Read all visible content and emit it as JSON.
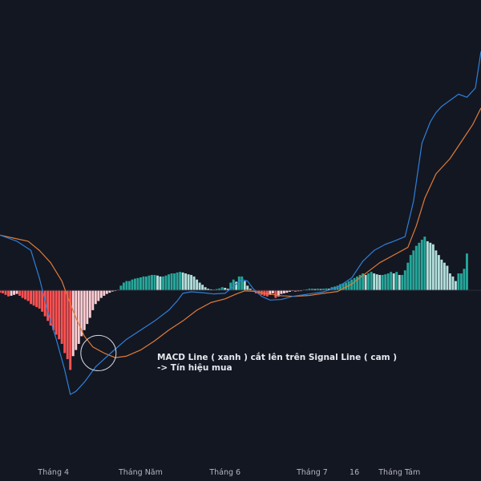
{
  "colors": {
    "background": "#131722",
    "macd_line": "#2f7fd6",
    "signal_line": "#e07b39",
    "hist_pos_strong": "#26a69a",
    "hist_pos_weak": "#b2dfdb",
    "hist_neg_strong": "#ff5252",
    "hist_neg_weak": "#ffcdd2",
    "axis_text": "#b2b5be",
    "annotation_text": "#e6e8ee",
    "circle": "#d1d4dc"
  },
  "annotation": {
    "line1": "MACD Line ( xanh ) cắt lên trên Signal Line ( cam )",
    "line2": "-> Tín hiệu mua"
  },
  "chart_data": {
    "type": "line",
    "x_axis_labels": [
      {
        "label": "Tháng 4",
        "t": 19
      },
      {
        "label": "Tháng Năm",
        "t": 50
      },
      {
        "label": "Tháng 6",
        "t": 80
      },
      {
        "label": "Tháng 7",
        "t": 111
      },
      {
        "label": "16",
        "t": 126
      },
      {
        "label": "Tháng Tám",
        "t": 142
      }
    ],
    "t_range": [
      0,
      171
    ],
    "y_range": [
      -3.4,
      7.8
    ],
    "zero": 0,
    "series": [
      {
        "key": "macd",
        "points": [
          [
            0,
            1.8
          ],
          [
            6,
            1.6
          ],
          [
            11,
            1.3
          ],
          [
            14,
            0.4
          ],
          [
            17,
            -0.7
          ],
          [
            20,
            -1.6
          ],
          [
            23,
            -2.6
          ],
          [
            25,
            -3.4
          ],
          [
            27,
            -3.3
          ],
          [
            30,
            -3.0
          ],
          [
            34,
            -2.5
          ],
          [
            40,
            -2.0
          ],
          [
            45,
            -1.6
          ],
          [
            50,
            -1.3
          ],
          [
            55,
            -1.0
          ],
          [
            60,
            -0.65
          ],
          [
            63,
            -0.35
          ],
          [
            65,
            -0.1
          ],
          [
            68,
            -0.05
          ],
          [
            72,
            -0.08
          ],
          [
            76,
            -0.12
          ],
          [
            80,
            -0.1
          ],
          [
            84,
            0.2
          ],
          [
            86,
            0.35
          ],
          [
            88,
            0.3
          ],
          [
            90,
            0.05
          ],
          [
            93,
            -0.2
          ],
          [
            96,
            -0.32
          ],
          [
            100,
            -0.3
          ],
          [
            104,
            -0.2
          ],
          [
            110,
            -0.12
          ],
          [
            115,
            -0.05
          ],
          [
            120,
            0.1
          ],
          [
            125,
            0.4
          ],
          [
            129,
            0.95
          ],
          [
            133,
            1.3
          ],
          [
            137,
            1.5
          ],
          [
            140,
            1.6
          ],
          [
            144,
            1.75
          ],
          [
            147,
            2.9
          ],
          [
            150,
            4.8
          ],
          [
            153,
            5.5
          ],
          [
            155,
            5.8
          ],
          [
            157,
            6.0
          ],
          [
            160,
            6.2
          ],
          [
            163,
            6.4
          ],
          [
            166,
            6.3
          ],
          [
            169,
            6.6
          ],
          [
            171,
            7.8
          ]
        ]
      },
      {
        "key": "signal",
        "points": [
          [
            0,
            1.8
          ],
          [
            5,
            1.7
          ],
          [
            10,
            1.6
          ],
          [
            14,
            1.3
          ],
          [
            18,
            0.9
          ],
          [
            22,
            0.3
          ],
          [
            24,
            -0.2
          ],
          [
            27,
            -0.9
          ],
          [
            30,
            -1.5
          ],
          [
            33,
            -1.85
          ],
          [
            37,
            -2.05
          ],
          [
            41,
            -2.2
          ],
          [
            45,
            -2.15
          ],
          [
            50,
            -1.95
          ],
          [
            55,
            -1.65
          ],
          [
            60,
            -1.3
          ],
          [
            65,
            -1.0
          ],
          [
            70,
            -0.65
          ],
          [
            75,
            -0.4
          ],
          [
            80,
            -0.28
          ],
          [
            84,
            -0.12
          ],
          [
            87,
            -0.02
          ],
          [
            90,
            -0.03
          ],
          [
            94,
            -0.1
          ],
          [
            100,
            -0.18
          ],
          [
            105,
            -0.2
          ],
          [
            110,
            -0.17
          ],
          [
            115,
            -0.1
          ],
          [
            120,
            -0.04
          ],
          [
            125,
            0.2
          ],
          [
            130,
            0.55
          ],
          [
            135,
            0.9
          ],
          [
            140,
            1.15
          ],
          [
            145,
            1.4
          ],
          [
            148,
            2.1
          ],
          [
            151,
            3.0
          ],
          [
            155,
            3.8
          ],
          [
            160,
            4.3
          ],
          [
            164,
            4.85
          ],
          [
            168,
            5.4
          ],
          [
            171,
            5.95
          ]
        ]
      }
    ],
    "histogram": [
      {
        "t": 0,
        "v": -0.08
      },
      {
        "t": 1,
        "v": -0.1
      },
      {
        "t": 2,
        "v": -0.15
      },
      {
        "t": 3,
        "v": -0.2
      },
      {
        "t": 4,
        "v": -0.18
      },
      {
        "t": 5,
        "v": -0.15
      },
      {
        "t": 6,
        "v": -0.12
      },
      {
        "t": 7,
        "v": -0.18
      },
      {
        "t": 8,
        "v": -0.25
      },
      {
        "t": 9,
        "v": -0.3
      },
      {
        "t": 10,
        "v": -0.35
      },
      {
        "t": 11,
        "v": -0.45
      },
      {
        "t": 12,
        "v": -0.5
      },
      {
        "t": 13,
        "v": -0.55
      },
      {
        "t": 14,
        "v": -0.6
      },
      {
        "t": 15,
        "v": -0.7
      },
      {
        "t": 16,
        "v": -0.85
      },
      {
        "t": 17,
        "v": -1.0
      },
      {
        "t": 18,
        "v": -1.15
      },
      {
        "t": 19,
        "v": -1.3
      },
      {
        "t": 20,
        "v": -1.45
      },
      {
        "t": 21,
        "v": -1.6
      },
      {
        "t": 22,
        "v": -1.75
      },
      {
        "t": 23,
        "v": -2.05
      },
      {
        "t": 24,
        "v": -2.25
      },
      {
        "t": 25,
        "v": -2.6
      },
      {
        "t": 26,
        "v": -2.15
      },
      {
        "t": 27,
        "v": -1.95
      },
      {
        "t": 28,
        "v": -1.75
      },
      {
        "t": 29,
        "v": -1.5
      },
      {
        "t": 30,
        "v": -1.3
      },
      {
        "t": 31,
        "v": -1.1
      },
      {
        "t": 32,
        "v": -0.9
      },
      {
        "t": 33,
        "v": -0.65
      },
      {
        "t": 34,
        "v": -0.45
      },
      {
        "t": 35,
        "v": -0.35
      },
      {
        "t": 36,
        "v": -0.25
      },
      {
        "t": 37,
        "v": -0.18
      },
      {
        "t": 38,
        "v": -0.12
      },
      {
        "t": 39,
        "v": -0.08
      },
      {
        "t": 40,
        "v": -0.04
      },
      {
        "t": 41,
        "v": -0.02
      },
      {
        "t": 42,
        "v": 0.02
      },
      {
        "t": 43,
        "v": 0.15
      },
      {
        "t": 44,
        "v": 0.25
      },
      {
        "t": 45,
        "v": 0.3
      },
      {
        "t": 46,
        "v": 0.3
      },
      {
        "t": 47,
        "v": 0.35
      },
      {
        "t": 48,
        "v": 0.38
      },
      {
        "t": 49,
        "v": 0.4
      },
      {
        "t": 50,
        "v": 0.42
      },
      {
        "t": 51,
        "v": 0.45
      },
      {
        "t": 52,
        "v": 0.45
      },
      {
        "t": 53,
        "v": 0.48
      },
      {
        "t": 54,
        "v": 0.5
      },
      {
        "t": 55,
        "v": 0.5
      },
      {
        "t": 56,
        "v": 0.48
      },
      {
        "t": 57,
        "v": 0.45
      },
      {
        "t": 58,
        "v": 0.45
      },
      {
        "t": 59,
        "v": 0.48
      },
      {
        "t": 60,
        "v": 0.52
      },
      {
        "t": 61,
        "v": 0.55
      },
      {
        "t": 62,
        "v": 0.55
      },
      {
        "t": 63,
        "v": 0.58
      },
      {
        "t": 64,
        "v": 0.6
      },
      {
        "t": 65,
        "v": 0.58
      },
      {
        "t": 66,
        "v": 0.55
      },
      {
        "t": 67,
        "v": 0.52
      },
      {
        "t": 68,
        "v": 0.5
      },
      {
        "t": 69,
        "v": 0.45
      },
      {
        "t": 70,
        "v": 0.35
      },
      {
        "t": 71,
        "v": 0.25
      },
      {
        "t": 72,
        "v": 0.18
      },
      {
        "t": 73,
        "v": 0.1
      },
      {
        "t": 74,
        "v": 0.05
      },
      {
        "t": 75,
        "v": 0.03
      },
      {
        "t": 76,
        "v": 0.02
      },
      {
        "t": 77,
        "v": 0.04
      },
      {
        "t": 78,
        "v": 0.06
      },
      {
        "t": 79,
        "v": 0.1
      },
      {
        "t": 80,
        "v": 0.08
      },
      {
        "t": 81,
        "v": 0.05
      },
      {
        "t": 82,
        "v": 0.25
      },
      {
        "t": 83,
        "v": 0.35
      },
      {
        "t": 84,
        "v": 0.28
      },
      {
        "t": 85,
        "v": 0.45
      },
      {
        "t": 86,
        "v": 0.45
      },
      {
        "t": 87,
        "v": 0.3
      },
      {
        "t": 88,
        "v": 0.15
      },
      {
        "t": 89,
        "v": 0.05
      },
      {
        "t": 90,
        "v": -0.05
      },
      {
        "t": 91,
        "v": -0.1
      },
      {
        "t": 92,
        "v": -0.12
      },
      {
        "t": 93,
        "v": -0.15
      },
      {
        "t": 94,
        "v": -0.18
      },
      {
        "t": 95,
        "v": -0.2
      },
      {
        "t": 96,
        "v": -0.15
      },
      {
        "t": 97,
        "v": -0.1
      },
      {
        "t": 98,
        "v": -0.25
      },
      {
        "t": 99,
        "v": -0.2
      },
      {
        "t": 100,
        "v": -0.12
      },
      {
        "t": 101,
        "v": -0.1
      },
      {
        "t": 102,
        "v": -0.08
      },
      {
        "t": 103,
        "v": -0.05
      },
      {
        "t": 104,
        "v": -0.02
      },
      {
        "t": 105,
        "v": -0.05
      },
      {
        "t": 106,
        "v": -0.03
      },
      {
        "t": 107,
        "v": -0.02
      },
      {
        "t": 108,
        "v": 0.02
      },
      {
        "t": 109,
        "v": 0.03
      },
      {
        "t": 110,
        "v": 0.05
      },
      {
        "t": 111,
        "v": 0.05
      },
      {
        "t": 112,
        "v": 0.04
      },
      {
        "t": 113,
        "v": 0.05
      },
      {
        "t": 114,
        "v": 0.04
      },
      {
        "t": 115,
        "v": 0.05
      },
      {
        "t": 116,
        "v": 0.06
      },
      {
        "t": 117,
        "v": 0.05
      },
      {
        "t": 118,
        "v": 0.1
      },
      {
        "t": 119,
        "v": 0.12
      },
      {
        "t": 120,
        "v": 0.15
      },
      {
        "t": 121,
        "v": 0.2
      },
      {
        "t": 122,
        "v": 0.22
      },
      {
        "t": 123,
        "v": 0.25
      },
      {
        "t": 124,
        "v": 0.3
      },
      {
        "t": 125,
        "v": 0.35
      },
      {
        "t": 126,
        "v": 0.4
      },
      {
        "t": 127,
        "v": 0.45
      },
      {
        "t": 128,
        "v": 0.5
      },
      {
        "t": 129,
        "v": 0.55
      },
      {
        "t": 130,
        "v": 0.5
      },
      {
        "t": 131,
        "v": 0.55
      },
      {
        "t": 132,
        "v": 0.6
      },
      {
        "t": 133,
        "v": 0.55
      },
      {
        "t": 134,
        "v": 0.52
      },
      {
        "t": 135,
        "v": 0.5
      },
      {
        "t": 136,
        "v": 0.5
      },
      {
        "t": 137,
        "v": 0.52
      },
      {
        "t": 138,
        "v": 0.55
      },
      {
        "t": 139,
        "v": 0.6
      },
      {
        "t": 140,
        "v": 0.55
      },
      {
        "t": 141,
        "v": 0.6
      },
      {
        "t": 142,
        "v": 0.5
      },
      {
        "t": 143,
        "v": 0.5
      },
      {
        "t": 144,
        "v": 0.65
      },
      {
        "t": 145,
        "v": 0.9
      },
      {
        "t": 146,
        "v": 1.15
      },
      {
        "t": 147,
        "v": 1.3
      },
      {
        "t": 148,
        "v": 1.45
      },
      {
        "t": 149,
        "v": 1.55
      },
      {
        "t": 150,
        "v": 1.65
      },
      {
        "t": 151,
        "v": 1.75
      },
      {
        "t": 152,
        "v": 1.6
      },
      {
        "t": 153,
        "v": 1.55
      },
      {
        "t": 154,
        "v": 1.5
      },
      {
        "t": 155,
        "v": 1.3
      },
      {
        "t": 156,
        "v": 1.15
      },
      {
        "t": 157,
        "v": 1.0
      },
      {
        "t": 158,
        "v": 0.9
      },
      {
        "t": 159,
        "v": 0.8
      },
      {
        "t": 160,
        "v": 0.55
      },
      {
        "t": 161,
        "v": 0.45
      },
      {
        "t": 162,
        "v": 0.3
      },
      {
        "t": 163,
        "v": 0.55
      },
      {
        "t": 164,
        "v": 0.55
      },
      {
        "t": 165,
        "v": 0.7
      },
      {
        "t": 166,
        "v": 1.2
      }
    ],
    "highlight_circle": {
      "t": 35,
      "v": -2.05
    }
  }
}
